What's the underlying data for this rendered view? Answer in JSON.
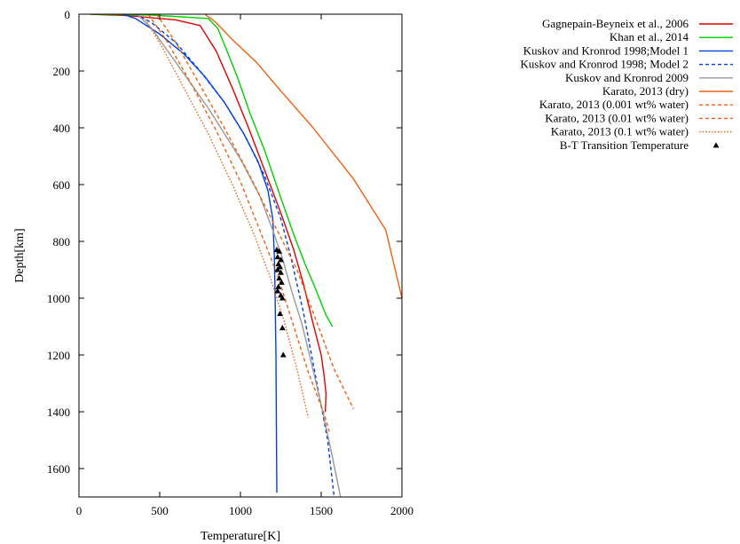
{
  "chart_data": {
    "type": "line",
    "title": "",
    "xlabel": "Temperature[K]",
    "ylabel": "Depth[km]",
    "xlim": [
      0,
      2000
    ],
    "ylim": [
      1700,
      0
    ],
    "y_inverted": true,
    "grid": false,
    "legend_position": "outside-right",
    "x_ticks": [
      0,
      500,
      1000,
      1500,
      2000
    ],
    "y_ticks": [
      0,
      200,
      400,
      600,
      800,
      1000,
      1200,
      1400,
      1600
    ],
    "series": [
      {
        "name": "Gagnepain-Beyneix et al., 2006",
        "color": "#e00000",
        "dash": "solid",
        "points": [
          [
            70,
            0
          ],
          [
            300,
            5
          ],
          [
            600,
            20
          ],
          [
            750,
            40
          ],
          [
            850,
            130
          ],
          [
            950,
            260
          ],
          [
            1050,
            400
          ],
          [
            1150,
            550
          ],
          [
            1250,
            700
          ],
          [
            1330,
            830
          ],
          [
            1390,
            950
          ],
          [
            1450,
            1090
          ],
          [
            1500,
            1200
          ],
          [
            1520,
            1280
          ],
          [
            1530,
            1340
          ],
          [
            1525,
            1400
          ]
        ]
      },
      {
        "name": "Khan et al., 2014",
        "color": "#00d000",
        "dash": "solid",
        "points": [
          [
            80,
            0
          ],
          [
            450,
            3
          ],
          [
            800,
            15
          ],
          [
            860,
            50
          ],
          [
            910,
            120
          ],
          [
            980,
            220
          ],
          [
            1060,
            350
          ],
          [
            1150,
            480
          ],
          [
            1240,
            630
          ],
          [
            1320,
            760
          ],
          [
            1400,
            880
          ],
          [
            1460,
            960
          ],
          [
            1530,
            1060
          ],
          [
            1570,
            1100
          ]
        ]
      },
      {
        "name": "Kuskov and Kronrod 1998;Model 1",
        "color": "#0040e0",
        "dash": "solid",
        "points": [
          [
            270,
            0
          ],
          [
            350,
            15
          ],
          [
            500,
            70
          ],
          [
            650,
            140
          ],
          [
            780,
            220
          ],
          [
            900,
            310
          ],
          [
            1020,
            420
          ],
          [
            1110,
            520
          ],
          [
            1170,
            620
          ],
          [
            1200,
            720
          ],
          [
            1210,
            850
          ],
          [
            1215,
            1000
          ],
          [
            1220,
            1200
          ],
          [
            1222,
            1400
          ],
          [
            1225,
            1685
          ]
        ]
      },
      {
        "name": "Kuskov and Kronrod 1998; Model 2",
        "color": "#0040e0",
        "dash": "dashed",
        "points": [
          [
            350,
            0
          ],
          [
            450,
            30
          ],
          [
            600,
            100
          ],
          [
            750,
            200
          ],
          [
            900,
            310
          ],
          [
            1030,
            430
          ],
          [
            1150,
            570
          ],
          [
            1250,
            720
          ],
          [
            1310,
            850
          ],
          [
            1350,
            950
          ],
          [
            1390,
            1050
          ],
          [
            1440,
            1200
          ],
          [
            1490,
            1350
          ],
          [
            1540,
            1500
          ],
          [
            1580,
            1700
          ]
        ]
      },
      {
        "name": "Kuskov and Kronrod 2009",
        "color": "#999999",
        "dash": "solid",
        "points": [
          [
            360,
            0
          ],
          [
            450,
            50
          ],
          [
            600,
            170
          ],
          [
            800,
            330
          ],
          [
            1000,
            510
          ],
          [
            1120,
            640
          ],
          [
            1200,
            760
          ],
          [
            1260,
            860
          ],
          [
            1320,
            980
          ],
          [
            1380,
            1090
          ],
          [
            1440,
            1230
          ],
          [
            1510,
            1400
          ],
          [
            1570,
            1560
          ],
          [
            1620,
            1700
          ]
        ]
      },
      {
        "name": "Karato, 2013 (dry)",
        "color": "#f06010",
        "dash": "solid",
        "points": [
          [
            780,
            0
          ],
          [
            850,
            30
          ],
          [
            950,
            90
          ],
          [
            1100,
            170
          ],
          [
            1250,
            270
          ],
          [
            1450,
            400
          ],
          [
            1700,
            580
          ],
          [
            1900,
            760
          ],
          [
            2000,
            1000
          ]
        ]
      },
      {
        "name": "Karato, 2013 (0.001 wt% water)",
        "color": "#f06010",
        "dash": "dashed",
        "points": [
          [
            480,
            0
          ],
          [
            600,
            100
          ],
          [
            750,
            250
          ],
          [
            900,
            400
          ],
          [
            1050,
            560
          ],
          [
            1200,
            730
          ],
          [
            1350,
            900
          ],
          [
            1470,
            1080
          ],
          [
            1580,
            1250
          ],
          [
            1700,
            1390
          ]
        ]
      },
      {
        "name": "Karato, 2013 (0.01 wt% water)",
        "color": "#f06010",
        "dash": "dashed",
        "points": [
          [
            430,
            0
          ],
          [
            550,
            100
          ],
          [
            700,
            250
          ],
          [
            850,
            410
          ],
          [
            1000,
            590
          ],
          [
            1120,
            760
          ],
          [
            1230,
            920
          ],
          [
            1330,
            1100
          ],
          [
            1420,
            1260
          ],
          [
            1520,
            1410
          ],
          [
            1550,
            1470
          ]
        ]
      },
      {
        "name": "Karato, 2013 (0.1 wt% water)",
        "color": "#f06010",
        "dash": "dotted",
        "points": [
          [
            390,
            0
          ],
          [
            500,
            100
          ],
          [
            650,
            260
          ],
          [
            800,
            420
          ],
          [
            950,
            600
          ],
          [
            1080,
            770
          ],
          [
            1180,
            920
          ],
          [
            1270,
            1080
          ],
          [
            1350,
            1250
          ],
          [
            1420,
            1420
          ]
        ]
      }
    ],
    "scatter": {
      "name": "B-T Transition Temperature",
      "color": "#000000",
      "marker": "triangle",
      "points": [
        [
          1225,
          830
        ],
        [
          1240,
          835
        ],
        [
          1230,
          855
        ],
        [
          1250,
          865
        ],
        [
          1235,
          880
        ],
        [
          1245,
          890
        ],
        [
          1230,
          900
        ],
        [
          1250,
          910
        ],
        [
          1240,
          930
        ],
        [
          1255,
          945
        ],
        [
          1235,
          960
        ],
        [
          1230,
          975
        ],
        [
          1250,
          990
        ],
        [
          1260,
          1000
        ],
        [
          1245,
          1055
        ],
        [
          1260,
          1105
        ],
        [
          1265,
          1200
        ]
      ]
    }
  }
}
